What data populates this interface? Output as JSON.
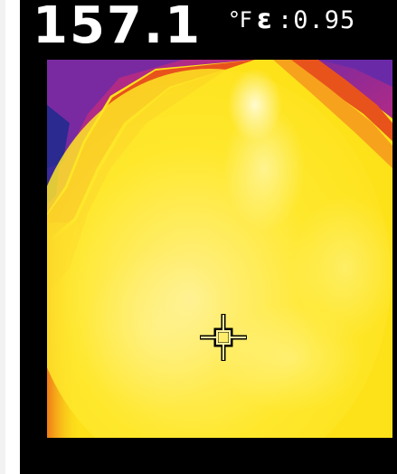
{
  "readout": {
    "temperature": "157.1",
    "unit": "°F",
    "emissivity_symbol": "ε",
    "emissivity_value": ":0.95"
  },
  "thermal_image": {
    "palette": {
      "hot_white": "#fffbd0",
      "yellow": "#fde21a",
      "orange": "#f7a21c",
      "red_orange": "#e8531c",
      "magenta": "#a52a8c",
      "purple": "#6a2aa8",
      "deep_blue": "#2b2a90"
    },
    "spot_marker": "crosshair-target-icon"
  }
}
